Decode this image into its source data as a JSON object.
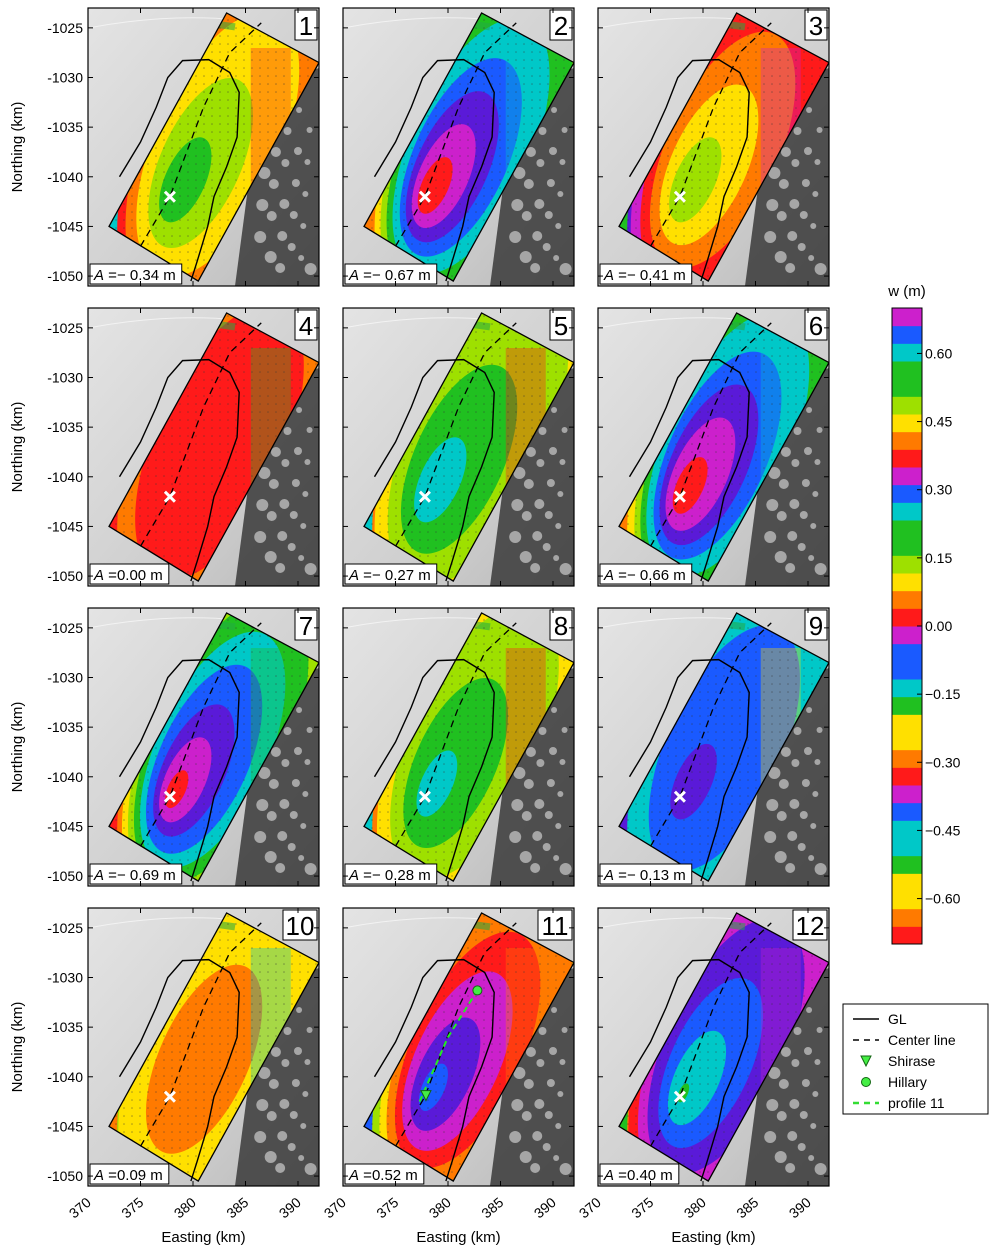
{
  "chart_data": {
    "type": "heatmap",
    "description_units": "w (m)",
    "xlabel": "Easting (km)",
    "ylabel": "Northing (km)",
    "xlim": [
      370,
      392
    ],
    "ylim": [
      -1051,
      -1023
    ],
    "x_ticks": [
      "370",
      "375",
      "380",
      "385",
      "390"
    ],
    "y_ticks": [
      "-1025",
      "-1030",
      "-1035",
      "-1040",
      "-1045",
      "-1050"
    ],
    "colorbar": {
      "label": "w (m)",
      "range": [
        -0.7,
        0.7
      ],
      "ticks": [
        "0.60",
        "0.45",
        "0.30",
        "0.15",
        "0.00",
        "−0.15",
        "−0.30",
        "−0.45",
        "−0.60"
      ],
      "tick_values": [
        0.6,
        0.45,
        0.3,
        0.15,
        0.0,
        -0.15,
        -0.3,
        -0.45,
        -0.6
      ]
    },
    "marker_point": {
      "easting": 377.8,
      "northing": -1042
    },
    "panels": [
      {
        "label": "1",
        "amplitude_text": "− 0.34 m",
        "A": -0.34
      },
      {
        "label": "2",
        "amplitude_text": "− 0.67 m",
        "A": -0.67
      },
      {
        "label": "3",
        "amplitude_text": "− 0.41 m",
        "A": -0.41
      },
      {
        "label": "4",
        "amplitude_text": "0.00 m",
        "A": 0.0
      },
      {
        "label": "5",
        "amplitude_text": "− 0.27 m",
        "A": -0.27
      },
      {
        "label": "6",
        "amplitude_text": "− 0.66 m",
        "A": -0.66
      },
      {
        "label": "7",
        "amplitude_text": "− 0.69 m",
        "A": -0.69
      },
      {
        "label": "8",
        "amplitude_text": "− 0.28 m",
        "A": -0.28
      },
      {
        "label": "9",
        "amplitude_text": "− 0.13 m",
        "A": -0.13
      },
      {
        "label": "10",
        "amplitude_text": "0.09 m",
        "A": 0.09
      },
      {
        "label": "11",
        "amplitude_text": "0.52 m",
        "A": 0.52
      },
      {
        "label": "12",
        "amplitude_text": "0.40 m",
        "A": 0.4
      }
    ],
    "legend": {
      "placement": "bottom-right",
      "entries": [
        {
          "label": "GL",
          "style": "solid-line",
          "color": "#000000"
        },
        {
          "label": "Center line",
          "style": "dashed-line",
          "color": "#000000"
        },
        {
          "label": "Shirase",
          "style": "triangle-marker",
          "color": "#33dd33"
        },
        {
          "label": "Hillary",
          "style": "circle-marker",
          "color": "#33dd33"
        },
        {
          "label": "profile 11",
          "style": "dashed-line",
          "color": "#33dd33"
        }
      ]
    },
    "amplitude_prefix": "A",
    "amplitude_eq": " ="
  }
}
